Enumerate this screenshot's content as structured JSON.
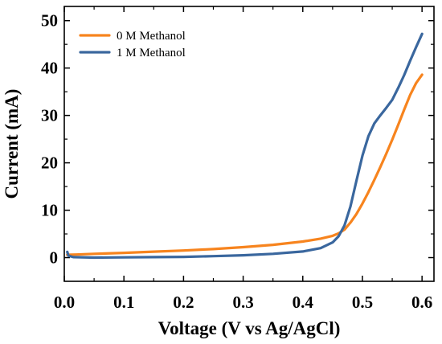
{
  "chart_data": {
    "type": "line",
    "xlabel": "Voltage (V vs Ag/AgCl)",
    "ylabel": "Current (mA)",
    "xlim": [
      0.0,
      0.62
    ],
    "ylim": [
      -5,
      53
    ],
    "xticks": [
      0.0,
      0.1,
      0.2,
      0.3,
      0.4,
      0.5,
      0.6
    ],
    "xtick_labels": [
      "0.0",
      "0.1",
      "0.2",
      "0.3",
      "0.4",
      "0.5",
      "0.6"
    ],
    "yticks": [
      0,
      10,
      20,
      30,
      40,
      50
    ],
    "ytick_labels": [
      "0",
      "10",
      "20",
      "30",
      "40",
      "50"
    ],
    "grid": false,
    "legend_position": "top-left",
    "series": [
      {
        "name": "0 M Methanol",
        "color": "#F7841E",
        "points": [
          [
            0.005,
            0.6
          ],
          [
            0.02,
            0.65
          ],
          [
            0.05,
            0.8
          ],
          [
            0.1,
            1.0
          ],
          [
            0.15,
            1.25
          ],
          [
            0.2,
            1.5
          ],
          [
            0.25,
            1.8
          ],
          [
            0.3,
            2.2
          ],
          [
            0.35,
            2.7
          ],
          [
            0.4,
            3.4
          ],
          [
            0.43,
            4.0
          ],
          [
            0.45,
            4.6
          ],
          [
            0.46,
            5.1
          ],
          [
            0.47,
            5.9
          ],
          [
            0.48,
            7.4
          ],
          [
            0.49,
            9.2
          ],
          [
            0.5,
            11.4
          ],
          [
            0.51,
            13.8
          ],
          [
            0.52,
            16.4
          ],
          [
            0.53,
            19.1
          ],
          [
            0.54,
            21.9
          ],
          [
            0.55,
            24.9
          ],
          [
            0.56,
            28.0
          ],
          [
            0.57,
            31.2
          ],
          [
            0.58,
            34.3
          ],
          [
            0.59,
            36.8
          ],
          [
            0.6,
            38.6
          ]
        ]
      },
      {
        "name": "1 M Methanol",
        "color": "#3A679E",
        "points": [
          [
            0.005,
            1.2
          ],
          [
            0.007,
            0.4
          ],
          [
            0.015,
            0.1
          ],
          [
            0.05,
            0.0
          ],
          [
            0.1,
            0.05
          ],
          [
            0.15,
            0.1
          ],
          [
            0.2,
            0.15
          ],
          [
            0.25,
            0.3
          ],
          [
            0.3,
            0.5
          ],
          [
            0.35,
            0.8
          ],
          [
            0.4,
            1.3
          ],
          [
            0.43,
            2.0
          ],
          [
            0.45,
            3.2
          ],
          [
            0.46,
            4.5
          ],
          [
            0.47,
            6.8
          ],
          [
            0.48,
            10.8
          ],
          [
            0.49,
            16.2
          ],
          [
            0.5,
            21.5
          ],
          [
            0.51,
            25.6
          ],
          [
            0.52,
            28.3
          ],
          [
            0.53,
            30.0
          ],
          [
            0.54,
            31.6
          ],
          [
            0.55,
            33.3
          ],
          [
            0.56,
            35.8
          ],
          [
            0.57,
            38.5
          ],
          [
            0.58,
            41.5
          ],
          [
            0.59,
            44.4
          ],
          [
            0.6,
            47.2
          ]
        ]
      }
    ]
  }
}
